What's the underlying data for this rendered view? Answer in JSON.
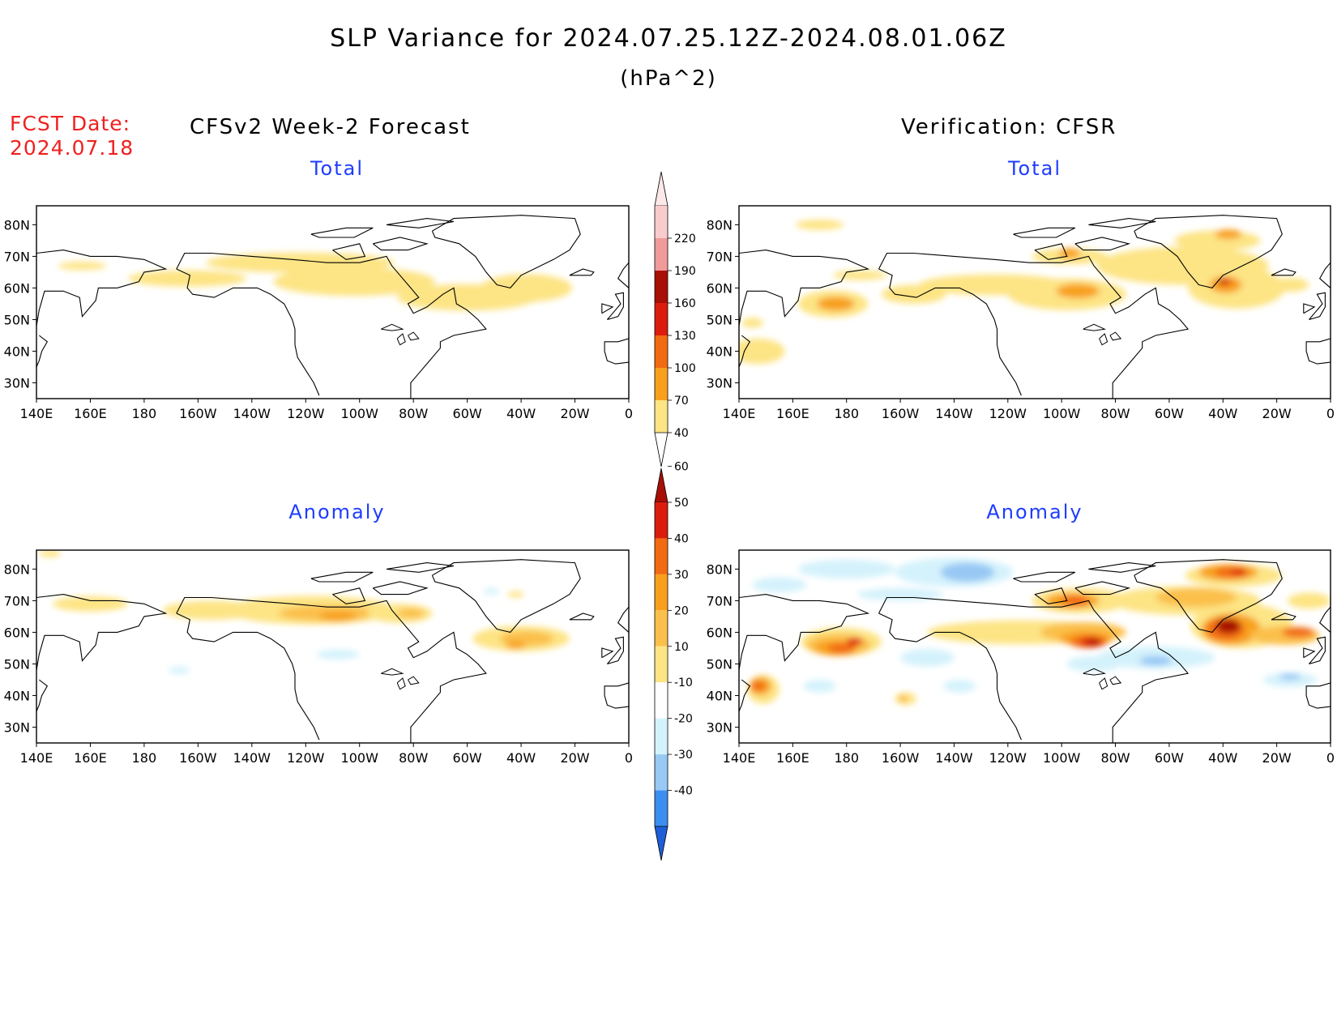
{
  "header": {
    "title": "SLP Variance for 2024.07.25.12Z-2024.08.01.06Z",
    "units": "(hPa^2)",
    "fcst_label": "FCST Date:",
    "fcst_date": "2024.07.18",
    "left_column_title": "CFSv2 Week-2 Forecast",
    "right_column_title": "Verification: CFSR"
  },
  "panels": [
    {
      "name": "forecast-total",
      "title": "Total",
      "field": "total"
    },
    {
      "name": "verification-total",
      "title": "Total",
      "field": "total"
    },
    {
      "name": "forecast-anomaly",
      "title": "Anomaly",
      "field": "anomaly"
    },
    {
      "name": "verification-anomaly",
      "title": "Anomaly",
      "field": "anomaly"
    }
  ],
  "axes": {
    "x_ticks": [
      "140E",
      "160E",
      "180",
      "160W",
      "140W",
      "120W",
      "100W",
      "80W",
      "60W",
      "40W",
      "20W",
      "0"
    ],
    "y_ticks": [
      "80N",
      "70N",
      "60N",
      "50N",
      "40N",
      "30N"
    ]
  },
  "colorbars": {
    "total": {
      "levels": [
        "40",
        "70",
        "100",
        "130",
        "160",
        "190",
        "220"
      ],
      "colors": [
        "#fde484",
        "#f8a01c",
        "#f26a12",
        "#dc1c0c",
        "#a80f06",
        "#f09a9a",
        "#f8cccc",
        "#fce8e8"
      ]
    },
    "anomaly": {
      "levels": [
        "-40",
        "-30",
        "-20",
        "-10",
        "10",
        "20",
        "30",
        "40",
        "50",
        "60"
      ],
      "colors": [
        "#1e5fd8",
        "#3c8ef0",
        "#98c8f4",
        "#d4f2fc",
        "#ffffff",
        "#fde484",
        "#fbc04c",
        "#f8a01c",
        "#f26a12",
        "#dc1c0c",
        "#a80f06"
      ]
    }
  },
  "colors": {
    "title_red": "#f02020",
    "panel_title_blue": "#1e3cff",
    "coast": "#000000"
  }
}
